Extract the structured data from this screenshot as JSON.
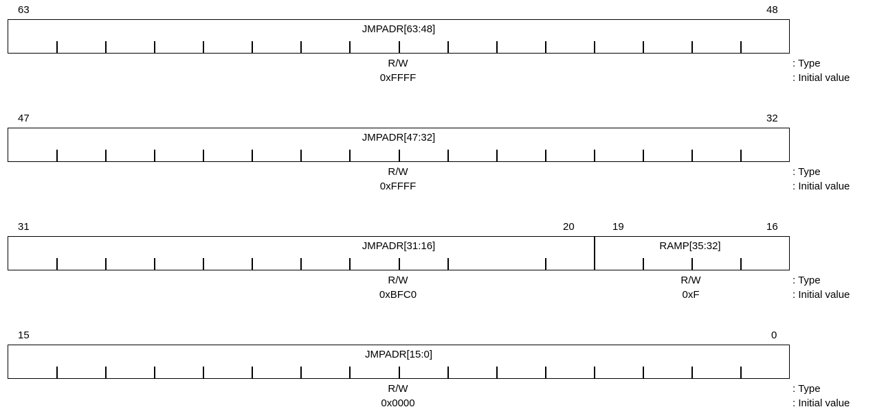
{
  "legend": {
    "type": ": Type",
    "init": ": Initial value"
  },
  "registers": [
    {
      "hi_left": "63",
      "hi_right": "48",
      "fields": [
        {
          "name": "JMPADR[63:48]",
          "type": "R/W",
          "init": "0xFFFF"
        }
      ]
    },
    {
      "hi_left": "47",
      "hi_right": "32",
      "fields": [
        {
          "name": "JMPADR[47:32]",
          "type": "R/W",
          "init": "0xFFFF"
        }
      ]
    },
    {
      "hi_left": "31",
      "hi_right": "16",
      "split_labels": {
        "a": "20",
        "b": "19"
      },
      "fields": [
        {
          "name": "JMPADR[31:16]",
          "type": "R/W",
          "init": "0xBFC0"
        },
        {
          "name": "RAMP[35:32]",
          "type": "R/W",
          "init": "0xF"
        }
      ]
    },
    {
      "hi_left": "15",
      "hi_right": "0",
      "fields": [
        {
          "name": "JMPADR[15:0]",
          "type": "R/W",
          "init": "0x0000"
        }
      ]
    }
  ]
}
